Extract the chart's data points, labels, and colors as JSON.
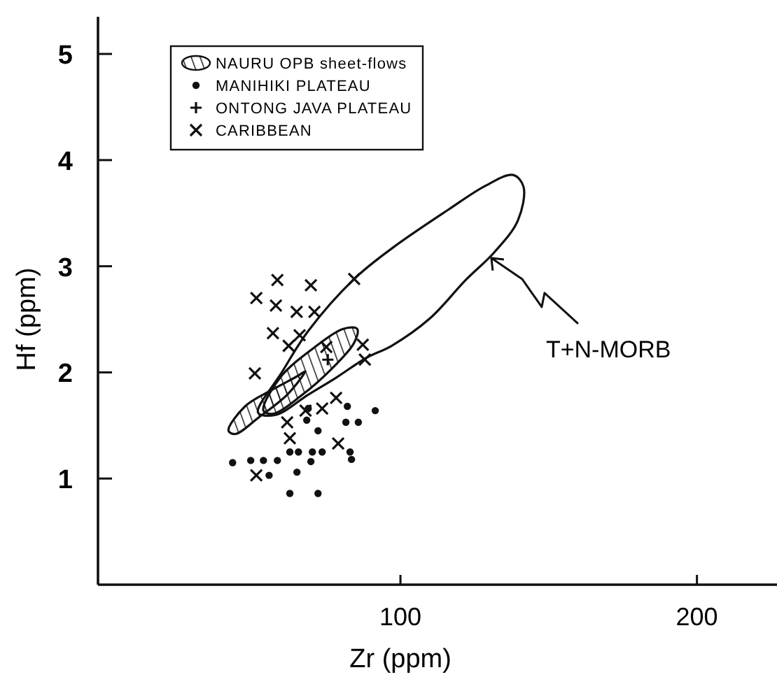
{
  "chart_data": {
    "type": "scatter",
    "xlabel": "Zr (ppm)",
    "ylabel": "Hf (ppm)",
    "xlim": [
      -2,
      227
    ],
    "ylim": [
      0,
      5.35
    ],
    "xticks": [
      100,
      200
    ],
    "yticks": [
      1,
      2,
      3,
      4,
      5
    ],
    "grid": false,
    "legend": "top left",
    "annotations": [
      "NAURU OPB sheet-flows",
      "T+N-MORB"
    ],
    "series": [
      {
        "name": "MANIHIKI PLATEAU",
        "marker": "circle",
        "color": "#111111",
        "x": [
          43.4,
          49.5,
          53.8,
          55.7,
          58.5,
          62.7,
          72.2,
          65.1,
          62.7,
          65.6,
          69.8,
          70.3,
          73.6,
          72.2,
          68.9,
          82.1,
          81.6,
          85.8,
          91.5,
          83,
          83.5,
          68.4
        ],
        "values": [
          1.15,
          1.17,
          1.17,
          1.03,
          1.17,
          0.86,
          0.86,
          1.06,
          1.25,
          1.25,
          1.16,
          1.25,
          1.25,
          1.45,
          1.66,
          1.68,
          1.53,
          1.53,
          1.64,
          1.25,
          1.18,
          1.55
        ]
      },
      {
        "name": "ONTONG JAVA PLATEAU",
        "marker": "plus",
        "color": "#111111",
        "x": [
          75.5
        ],
        "values": [
          2.12
        ]
      },
      {
        "name": "CARIBBEAN",
        "marker": "cross",
        "color": "#111111",
        "x": [
          58.5,
          69.8,
          84.4,
          51.4,
          58,
          65,
          71,
          57,
          62.3,
          66,
          50.9,
          75,
          87.3,
          88,
          61.8,
          62.7,
          73.6,
          78.3,
          79,
          51.4,
          68
        ],
        "values": [
          2.87,
          2.82,
          2.88,
          2.7,
          2.63,
          2.57,
          2.57,
          2.37,
          2.25,
          2.35,
          1.99,
          2.24,
          2.26,
          2.12,
          1.53,
          1.38,
          1.66,
          1.76,
          1.33,
          1.03,
          1.64
        ]
      }
    ]
  }
}
